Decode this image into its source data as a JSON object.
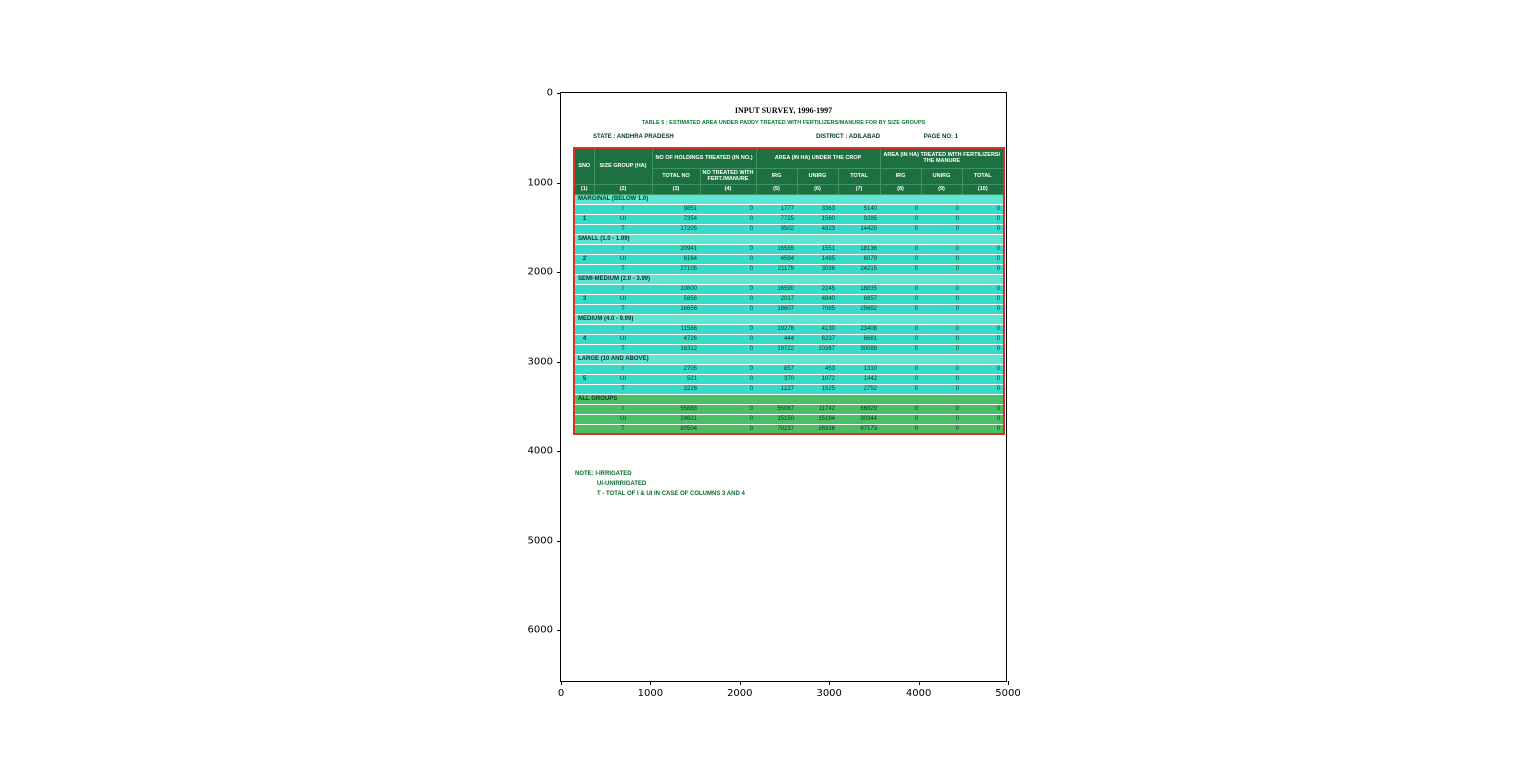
{
  "figure": {
    "x_ticks": [
      "0",
      "1000",
      "2000",
      "3000",
      "4000",
      "5000"
    ],
    "y_ticks": [
      "0",
      "1000",
      "2000",
      "3000",
      "4000",
      "5000",
      "6000"
    ]
  },
  "document": {
    "title": "INPUT SURVEY, 1996-1997",
    "subtitle": "TABLE 5 : ESTIMATED AREA UNDER PADDY TREATED WITH FERTILIZERS/MANURE FOR BY SIZE GROUPS",
    "state_label": "STATE : ANDHRA PRADESH",
    "district_label": "DISTRICT : ADILABAD",
    "page_label": "PAGE NO: 1",
    "notes": [
      "NOTE: I-IRRIGATED",
      "UI-UNIRRIGATED",
      "T - TOTAL OF I & UI IN CASE OF COLUMNS 3 AND 4"
    ]
  },
  "table": {
    "header": {
      "sno": "SNO",
      "size_group": "SIZE GROUP (HA)",
      "holdings": "NO OF HOLDINGS TREATED (IN NO.)",
      "area_crop": "AREA (IN HA) UNDER THE CROP",
      "area_treated": "AREA (IN HA) TREATED WITH FERTILIZERS/ THE MANURE"
    },
    "subheaders": [
      "TOTAL NO",
      "NO TREATED WITH FERT./MANURE",
      "IRG",
      "UNIRG",
      "TOTAL",
      "IRG",
      "UNIRG",
      "TOTAL"
    ],
    "col_numbers": [
      "(1)",
      "(2)",
      "(3)",
      "(4)",
      "(5)",
      "(6)",
      "(7)",
      "(8)",
      "(9)",
      "(10)"
    ],
    "groups": [
      {
        "sno": "1",
        "label": "MARGINAL (BELOW 1.0)",
        "green": false,
        "rows": [
          {
            "type": "I",
            "values": [
              "9851",
              "0",
              "1777",
              "3363",
              "5140",
              "0",
              "0",
              "0"
            ]
          },
          {
            "type": "UI",
            "values": [
              "7354",
              "0",
              "7725",
              "1560",
              "9285",
              "0",
              "0",
              "0"
            ]
          },
          {
            "type": "T",
            "values": [
              "17205",
              "0",
              "9502",
              "4923",
              "14425",
              "0",
              "0",
              "0"
            ]
          }
        ]
      },
      {
        "sno": "2",
        "label": "SMALL (1.0 - 1.99)",
        "green": false,
        "rows": [
          {
            "type": "I",
            "values": [
              "20941",
              "0",
              "16585",
              "1551",
              "18136",
              "0",
              "0",
              "0"
            ]
          },
          {
            "type": "UI",
            "values": [
              "6164",
              "0",
              "4594",
              "1485",
              "6079",
              "0",
              "0",
              "0"
            ]
          },
          {
            "type": "T",
            "values": [
              "27105",
              "0",
              "21179",
              "3036",
              "24215",
              "0",
              "0",
              "0"
            ]
          }
        ]
      },
      {
        "sno": "3",
        "label": "SEMI-MEDIUM (2.0 - 3.99)",
        "green": false,
        "rows": [
          {
            "type": "I",
            "values": [
              "10800",
              "0",
              "16590",
              "2245",
              "18835",
              "0",
              "0",
              "0"
            ]
          },
          {
            "type": "UI",
            "values": [
              "5856",
              "0",
              "2017",
              "4840",
              "6857",
              "0",
              "0",
              "0"
            ]
          },
          {
            "type": "T",
            "values": [
              "16656",
              "0",
              "18607",
              "7085",
              "25692",
              "0",
              "0",
              "0"
            ]
          }
        ]
      },
      {
        "sno": "4",
        "label": "MEDIUM (4.0 - 9.99)",
        "green": false,
        "rows": [
          {
            "type": "I",
            "values": [
              "11586",
              "0",
              "19278",
              "4130",
              "23408",
              "0",
              "0",
              "0"
            ]
          },
          {
            "type": "UI",
            "values": [
              "4726",
              "0",
              "444",
              "6237",
              "6681",
              "0",
              "0",
              "0"
            ]
          },
          {
            "type": "T",
            "values": [
              "16312",
              "0",
              "19722",
              "10367",
              "30089",
              "0",
              "0",
              "0"
            ]
          }
        ]
      },
      {
        "sno": "5",
        "label": "LARGE (10 AND ABOVE)",
        "green": false,
        "rows": [
          {
            "type": "I",
            "values": [
              "2705",
              "0",
              "857",
              "453",
              "1310",
              "0",
              "0",
              "0"
            ]
          },
          {
            "type": "UI",
            "values": [
              "521",
              "0",
              "370",
              "1072",
              "1442",
              "0",
              "0",
              "0"
            ]
          },
          {
            "type": "T",
            "values": [
              "3226",
              "0",
              "1227",
              "1525",
              "2752",
              "0",
              "0",
              "0"
            ]
          }
        ]
      },
      {
        "sno": "",
        "label": "ALL GROUPS",
        "green": true,
        "rows": [
          {
            "type": "I",
            "values": [
              "55883",
              "0",
              "55087",
              "11742",
              "66829",
              "0",
              "0",
              "0"
            ]
          },
          {
            "type": "UI",
            "values": [
              "24621",
              "0",
              "15150",
              "15194",
              "30344",
              "0",
              "0",
              "0"
            ]
          },
          {
            "type": "T",
            "values": [
              "80504",
              "0",
              "70237",
              "26936",
              "97173",
              "0",
              "0",
              "0"
            ]
          }
        ]
      }
    ]
  },
  "colors": {
    "table_border": "#d93025",
    "header_bg": "#1e7041",
    "row_teal": "#38dbc7",
    "group_row_teal": "#5fe5d4",
    "all_groups_green": "#4abf63",
    "accent_green_text": "#0b6a2f"
  }
}
